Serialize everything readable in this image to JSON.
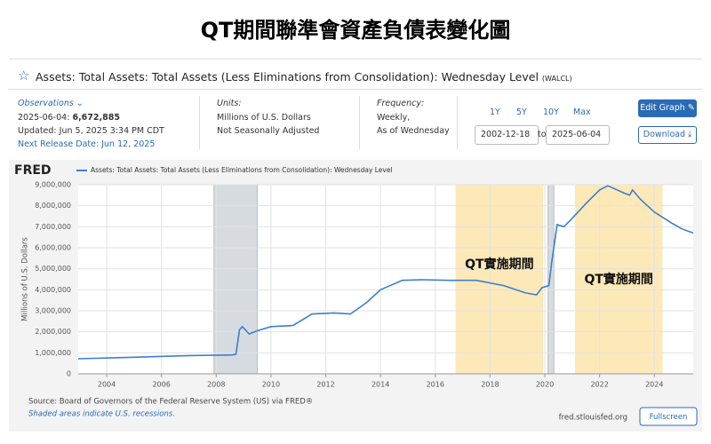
{
  "page_title": "QT期間聯準會資產負債表變化圖",
  "header": {
    "series_title": "Assets: Total Assets: Total Assets (Less Eliminations from Consolidation): Wednesday Level",
    "series_id": "(WALCL)"
  },
  "observations": {
    "label": "Observations",
    "date": "2025-06-04:",
    "value": "6,672,885",
    "updated": "Updated: Jun 5, 2025 3:34 PM CDT",
    "next_release": "Next Release Date: Jun 12, 2025"
  },
  "units": {
    "label": "Units:",
    "lines": [
      "Millions of U.S. Dollars",
      "Not Seasonally Adjusted"
    ]
  },
  "frequency": {
    "label": "Frequency:",
    "lines": [
      "Weekly,",
      "As of Wednesday"
    ]
  },
  "controls": {
    "ranges": [
      "1Y",
      "5Y",
      "10Y",
      "Max"
    ],
    "start": "2002-12-18",
    "to": "to",
    "end": "2025-06-04",
    "edit": "Edit Graph",
    "download": "Download",
    "fullscreen": "Fullscreen"
  },
  "chart_data": {
    "type": "line",
    "brand": "FRED",
    "y_label": "Millions of U.S. Dollars",
    "x": [
      2002.96,
      2005,
      2007,
      2008.6,
      2008.72,
      2008.85,
      2008.95,
      2009.2,
      2009.5,
      2010,
      2010.8,
      2011.5,
      2012.3,
      2012.9,
      2013.5,
      2014.0,
      2014.8,
      2015.5,
      2016.5,
      2017.5,
      2018.5,
      2019.3,
      2019.7,
      2019.9,
      2020.15,
      2020.25,
      2020.45,
      2020.7,
      2021,
      2021.5,
      2022.0,
      2022.3,
      2022.9,
      2023.1,
      2023.2,
      2023.5,
      2024,
      2024.6,
      2025,
      2025.42
    ],
    "series": [
      {
        "name": "Assets: Total Assets: Total Assets (Less Eliminations from Consolidation): Wednesday Level",
        "color": "#3b7fcc",
        "values": [
          720000,
          790000,
          870000,
          900000,
          940000,
          2100000,
          2250000,
          1900000,
          2050000,
          2250000,
          2300000,
          2850000,
          2900000,
          2850000,
          3400000,
          4000000,
          4450000,
          4480000,
          4450000,
          4450000,
          4200000,
          3850000,
          3760000,
          4100000,
          4200000,
          5300000,
          7100000,
          7000000,
          7400000,
          8100000,
          8750000,
          8950000,
          8600000,
          8500000,
          8750000,
          8300000,
          7700000,
          7200000,
          6900000,
          6700000
        ]
      }
    ],
    "xlim": [
      2002.96,
      2025.42
    ],
    "ylim": [
      0,
      9000000
    ],
    "xticks": [
      2004,
      2006,
      2008,
      2010,
      2012,
      2014,
      2016,
      2018,
      2020,
      2022,
      2024
    ],
    "yticks": [
      0,
      {
        "value": 1000000,
        "label": "1,000,000"
      },
      {
        "value": 2000000,
        "label": "2,000,000"
      },
      {
        "value": 3000000,
        "label": "3,000,000"
      },
      {
        "value": 4000000,
        "label": "4,000,000"
      },
      {
        "value": 5000000,
        "label": "5,000,000"
      },
      {
        "value": 6000000,
        "label": "6,000,000"
      },
      {
        "value": 7000000,
        "label": "7,000,000"
      },
      {
        "value": 8000000,
        "label": "8,000,000"
      },
      {
        "value": 9000000,
        "label": "9,000,000"
      }
    ],
    "grid": true,
    "recessions": [
      [
        2007.92,
        2009.5
      ],
      [
        2020.12,
        2020.33
      ]
    ],
    "highlights": [
      {
        "range": [
          2016.74,
          2019.94
        ],
        "label": "QT實施期間"
      },
      {
        "range": [
          2021.1,
          2024.3
        ],
        "label": "QT實施期間"
      }
    ]
  },
  "footer": {
    "source": "Source: Board of Governors of the Federal Reserve System (US) via FRED®",
    "note": "Shaded areas indicate U.S. recessions.",
    "site": "fred.stlouisfed.org"
  }
}
